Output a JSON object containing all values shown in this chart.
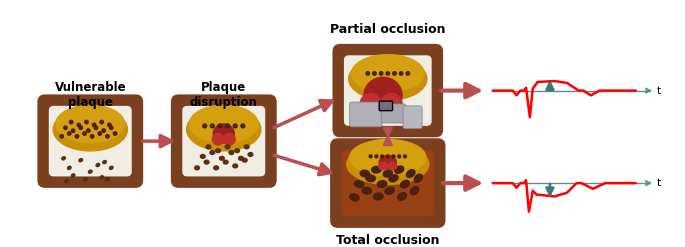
{
  "bg_color": "#ffffff",
  "brown_outer": "#7A4020",
  "brown_ring": "#8B4513",
  "white_lumen": "#F0EDE5",
  "gold_plaque": "#D4A010",
  "gold_plaque2": "#C89008",
  "red_arrow": "#B85050",
  "teal": "#3A7A7A",
  "ecg_red": "#FF0000",
  "dot_brown": "#5A3015",
  "dot_dark": "#4A2010",
  "heart_red": "#C03030",
  "heart_red2": "#A02020",
  "gray_frag": "#9090A0",
  "total_fill": "#9A4015",
  "label_partial": "Partial occlusion",
  "label_total": "Total occlusion",
  "label_vuln": "Vulnerable\nplaque",
  "label_plaque": "Plaque\ndisruption"
}
